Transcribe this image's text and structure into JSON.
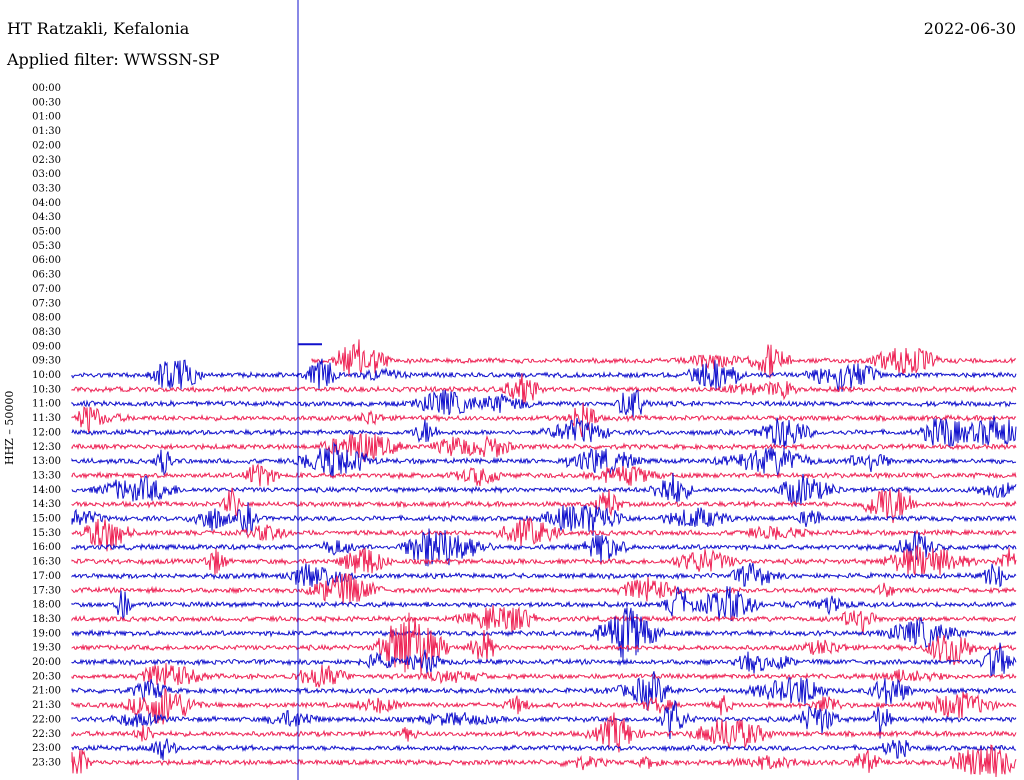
{
  "header": {
    "station": "HT Ratzakli, Kefalonia",
    "filter": "Applied filter: WWSSN-SP",
    "date": "2022-06-30",
    "channel": "HHZ – 50000"
  },
  "colors": {
    "red_trace": "#ee2355",
    "blue_trace": "#1010cc",
    "marker": "#1010cc"
  },
  "chart_data": {
    "type": "line",
    "description": "helicorder",
    "time_labels": [
      "00:00",
      "00:30",
      "01:00",
      "01:30",
      "02:00",
      "02:30",
      "03:00",
      "03:30",
      "04:00",
      "04:30",
      "05:00",
      "05:30",
      "06:00",
      "06:30",
      "07:00",
      "07:30",
      "08:00",
      "08:30",
      "09:00",
      "09:30",
      "10:00",
      "10:30",
      "11:00",
      "11:30",
      "12:00",
      "12:30",
      "13:00",
      "13:30",
      "14:00",
      "14:30",
      "15:00",
      "15:30",
      "16:00",
      "16:30",
      "17:00",
      "17:30",
      "18:00",
      "18:30",
      "19:00",
      "19:30",
      "20:00",
      "20:30",
      "21:00",
      "21:30",
      "22:00",
      "22:30",
      "23:00",
      "23:30"
    ],
    "trace_start_label": "09:30",
    "trace_colors_alternate": [
      "red",
      "blue"
    ],
    "marker_time": "09:00"
  }
}
